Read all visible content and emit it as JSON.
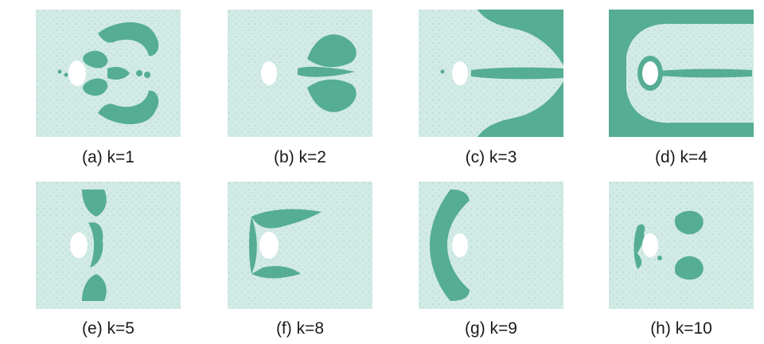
{
  "colors": {
    "background_field": "#d3ebe6",
    "field_texture": "#b9ddd5",
    "cluster": "#55ad94",
    "hole": "#ffffff"
  },
  "panels": [
    {
      "caption": "(a) k=1"
    },
    {
      "caption": "(b) k=2"
    },
    {
      "caption": "(c) k=3"
    },
    {
      "caption": "(d) k=4"
    },
    {
      "caption": "(e) k=5"
    },
    {
      "caption": "(f) k=8"
    },
    {
      "caption": "(g) k=9"
    },
    {
      "caption": "(h) k=10"
    }
  ]
}
